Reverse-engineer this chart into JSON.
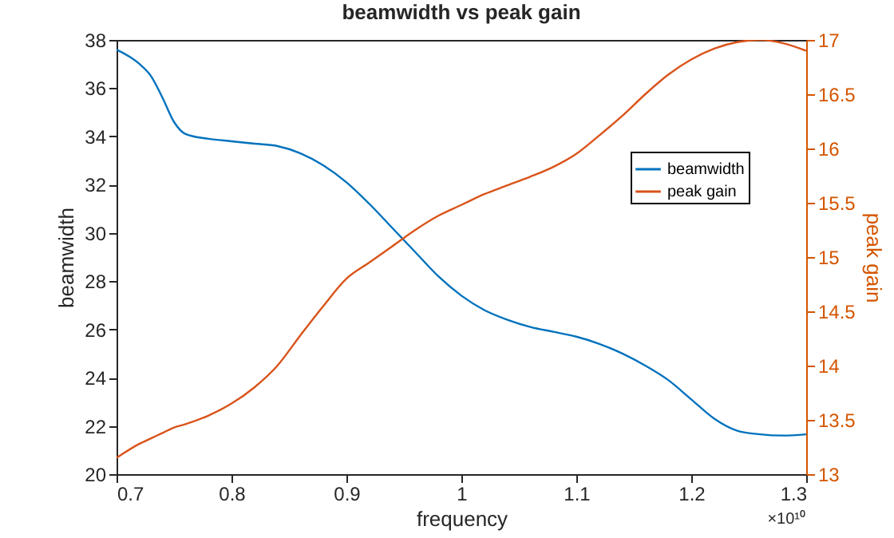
{
  "chart_data": {
    "type": "line",
    "title": "beamwidth vs peak gain",
    "xlabel": "frequency",
    "ylabel": "beamwidth",
    "y2label": "peak gain",
    "annotations": [
      "×10¹⁰"
    ],
    "x": [
      0.7,
      0.72,
      0.73,
      0.74,
      0.75,
      0.76,
      0.78,
      0.8,
      0.82,
      0.84,
      0.86,
      0.88,
      0.9,
      0.92,
      0.94,
      0.96,
      0.98,
      1.0,
      1.02,
      1.04,
      1.06,
      1.08,
      1.1,
      1.12,
      1.14,
      1.16,
      1.18,
      1.2,
      1.22,
      1.24,
      1.26,
      1.28,
      1.3
    ],
    "series": [
      {
        "name": "beamwidth",
        "color": "#0072bd",
        "values": [
          37.6,
          37.0,
          36.5,
          35.6,
          34.6,
          34.1,
          33.9,
          33.8,
          33.7,
          33.6,
          33.3,
          32.8,
          32.1,
          31.2,
          30.2,
          29.2,
          28.2,
          27.4,
          26.8,
          26.4,
          26.1,
          25.9,
          25.7,
          25.4,
          25.0,
          24.5,
          23.9,
          23.1,
          22.3,
          21.8,
          21.65,
          21.6,
          21.65
        ]
      },
      {
        "name": "peak gain",
        "color": "#d95319",
        "axis": "y2",
        "values": [
          13.15,
          13.28,
          13.33,
          13.38,
          13.43,
          13.46,
          13.54,
          13.65,
          13.8,
          14.0,
          14.28,
          14.55,
          14.8,
          14.95,
          15.1,
          15.25,
          15.38,
          15.48,
          15.58,
          15.66,
          15.74,
          15.83,
          15.95,
          16.12,
          16.3,
          16.5,
          16.68,
          16.82,
          16.92,
          16.98,
          17.0,
          16.97,
          16.9
        ]
      }
    ],
    "xlim": [
      0.7,
      1.3
    ],
    "xticks": [
      0.7,
      0.8,
      0.9,
      1,
      1.1,
      1.2,
      1.3
    ],
    "ylim": [
      20,
      38
    ],
    "yticks": [
      20,
      22,
      24,
      26,
      28,
      30,
      32,
      34,
      36,
      38
    ],
    "y2lim": [
      13,
      17
    ],
    "y2ticks": [
      13,
      13.5,
      14,
      14.5,
      15,
      15.5,
      16,
      16.5,
      17
    ],
    "legend": "top right"
  }
}
